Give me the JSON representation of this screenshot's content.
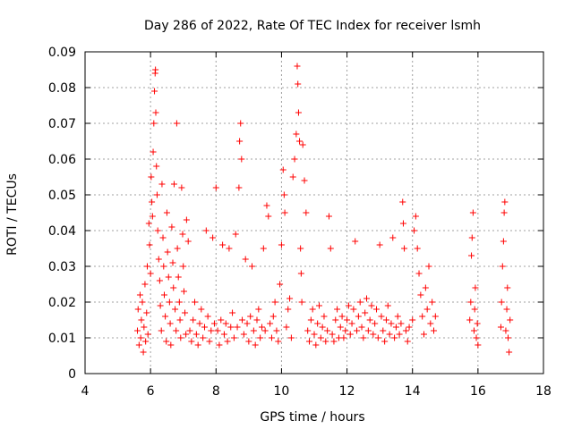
{
  "chart_data": {
    "type": "scatter",
    "title": "Day 286 of 2022, Rate Of TEC Index for receiver lsmh",
    "xlabel": "GPS time / hours",
    "ylabel": "ROTI / TECUs",
    "xlim": [
      4,
      18
    ],
    "ylim": [
      0,
      0.09
    ],
    "xticks": [
      "4",
      "6",
      "8",
      "10",
      "12",
      "14",
      "16",
      "18"
    ],
    "yticks": [
      "0",
      "0.01",
      "0.02",
      "0.03",
      "0.04",
      "0.05",
      "0.06",
      "0.07",
      "0.08",
      "0.09"
    ],
    "grid": true,
    "marker": "+",
    "marker_color": "#ff0000",
    "series": [
      {
        "points": [
          [
            5.6,
            0.012
          ],
          [
            5.62,
            0.018
          ],
          [
            5.65,
            0.008
          ],
          [
            5.68,
            0.022
          ],
          [
            5.7,
            0.01
          ],
          [
            5.72,
            0.015
          ],
          [
            5.75,
            0.02
          ],
          [
            5.78,
            0.006
          ],
          [
            5.8,
            0.013
          ],
          [
            5.83,
            0.025
          ],
          [
            5.85,
            0.009
          ],
          [
            5.88,
            0.017
          ],
          [
            5.9,
            0.03
          ],
          [
            5.92,
            0.011
          ],
          [
            5.95,
            0.042
          ],
          [
            5.97,
            0.036
          ],
          [
            6.0,
            0.028
          ],
          [
            6.02,
            0.055
          ],
          [
            6.04,
            0.048
          ],
          [
            6.06,
            0.044
          ],
          [
            6.08,
            0.062
          ],
          [
            6.1,
            0.07
          ],
          [
            6.12,
            0.079
          ],
          [
            6.14,
            0.084
          ],
          [
            6.15,
            0.085
          ],
          [
            6.16,
            0.073
          ],
          [
            6.18,
            0.058
          ],
          [
            6.2,
            0.05
          ],
          [
            6.22,
            0.04
          ],
          [
            6.25,
            0.032
          ],
          [
            6.28,
            0.026
          ],
          [
            6.3,
            0.019
          ],
          [
            6.33,
            0.012
          ],
          [
            6.35,
            0.053
          ],
          [
            6.38,
            0.038
          ],
          [
            6.4,
            0.03
          ],
          [
            6.42,
            0.022
          ],
          [
            6.45,
            0.016
          ],
          [
            6.48,
            0.009
          ],
          [
            6.5,
            0.045
          ],
          [
            6.52,
            0.034
          ],
          [
            6.55,
            0.027
          ],
          [
            6.58,
            0.02
          ],
          [
            6.6,
            0.014
          ],
          [
            6.62,
            0.008
          ],
          [
            6.65,
            0.041
          ],
          [
            6.68,
            0.031
          ],
          [
            6.7,
            0.024
          ],
          [
            6.72,
            0.053
          ],
          [
            6.75,
            0.018
          ],
          [
            6.78,
            0.012
          ],
          [
            6.8,
            0.07
          ],
          [
            6.82,
            0.035
          ],
          [
            6.85,
            0.027
          ],
          [
            6.88,
            0.02
          ],
          [
            6.9,
            0.015
          ],
          [
            6.92,
            0.01
          ],
          [
            6.95,
            0.052
          ],
          [
            6.98,
            0.039
          ],
          [
            7.0,
            0.03
          ],
          [
            7.02,
            0.023
          ],
          [
            7.05,
            0.017
          ],
          [
            7.08,
            0.011
          ],
          [
            7.1,
            0.043
          ],
          [
            7.15,
            0.037
          ],
          [
            7.2,
            0.012
          ],
          [
            7.25,
            0.009
          ],
          [
            7.3,
            0.015
          ],
          [
            7.35,
            0.02
          ],
          [
            7.4,
            0.011
          ],
          [
            7.45,
            0.008
          ],
          [
            7.5,
            0.014
          ],
          [
            7.55,
            0.018
          ],
          [
            7.6,
            0.01
          ],
          [
            7.65,
            0.013
          ],
          [
            7.7,
            0.04
          ],
          [
            7.75,
            0.016
          ],
          [
            7.8,
            0.009
          ],
          [
            7.85,
            0.012
          ],
          [
            7.9,
            0.038
          ],
          [
            7.95,
            0.014
          ],
          [
            8.0,
            0.052
          ],
          [
            8.05,
            0.012
          ],
          [
            8.1,
            0.008
          ],
          [
            8.15,
            0.015
          ],
          [
            8.2,
            0.036
          ],
          [
            8.25,
            0.011
          ],
          [
            8.3,
            0.014
          ],
          [
            8.35,
            0.009
          ],
          [
            8.4,
            0.035
          ],
          [
            8.45,
            0.013
          ],
          [
            8.5,
            0.017
          ],
          [
            8.55,
            0.01
          ],
          [
            8.6,
            0.039
          ],
          [
            8.65,
            0.013
          ],
          [
            8.7,
            0.052
          ],
          [
            8.72,
            0.065
          ],
          [
            8.75,
            0.07
          ],
          [
            8.78,
            0.06
          ],
          [
            8.8,
            0.015
          ],
          [
            8.85,
            0.011
          ],
          [
            8.9,
            0.032
          ],
          [
            8.95,
            0.014
          ],
          [
            9.0,
            0.009
          ],
          [
            9.05,
            0.016
          ],
          [
            9.1,
            0.03
          ],
          [
            9.15,
            0.012
          ],
          [
            9.2,
            0.008
          ],
          [
            9.25,
            0.015
          ],
          [
            9.3,
            0.018
          ],
          [
            9.35,
            0.01
          ],
          [
            9.4,
            0.013
          ],
          [
            9.45,
            0.035
          ],
          [
            9.5,
            0.012
          ],
          [
            9.55,
            0.047
          ],
          [
            9.6,
            0.044
          ],
          [
            9.65,
            0.014
          ],
          [
            9.7,
            0.01
          ],
          [
            9.75,
            0.016
          ],
          [
            9.8,
            0.02
          ],
          [
            9.85,
            0.012
          ],
          [
            9.9,
            0.009
          ],
          [
            9.95,
            0.025
          ],
          [
            10.0,
            0.036
          ],
          [
            10.05,
            0.057
          ],
          [
            10.08,
            0.05
          ],
          [
            10.1,
            0.045
          ],
          [
            10.15,
            0.013
          ],
          [
            10.2,
            0.018
          ],
          [
            10.25,
            0.021
          ],
          [
            10.3,
            0.01
          ],
          [
            10.35,
            0.055
          ],
          [
            10.4,
            0.06
          ],
          [
            10.45,
            0.067
          ],
          [
            10.48,
            0.086
          ],
          [
            10.5,
            0.081
          ],
          [
            10.52,
            0.073
          ],
          [
            10.55,
            0.065
          ],
          [
            10.58,
            0.035
          ],
          [
            10.6,
            0.028
          ],
          [
            10.62,
            0.02
          ],
          [
            10.65,
            0.064
          ],
          [
            10.7,
            0.054
          ],
          [
            10.75,
            0.045
          ],
          [
            10.8,
            0.012
          ],
          [
            10.85,
            0.009
          ],
          [
            10.9,
            0.015
          ],
          [
            10.95,
            0.018
          ],
          [
            11.0,
            0.011
          ],
          [
            11.05,
            0.008
          ],
          [
            11.1,
            0.014
          ],
          [
            11.15,
            0.019
          ],
          [
            11.2,
            0.01
          ],
          [
            11.25,
            0.013
          ],
          [
            11.3,
            0.016
          ],
          [
            11.35,
            0.009
          ],
          [
            11.4,
            0.012
          ],
          [
            11.45,
            0.044
          ],
          [
            11.5,
            0.035
          ],
          [
            11.55,
            0.011
          ],
          [
            11.6,
            0.009
          ],
          [
            11.65,
            0.015
          ],
          [
            11.7,
            0.018
          ],
          [
            11.75,
            0.01
          ],
          [
            11.8,
            0.013
          ],
          [
            11.85,
            0.016
          ],
          [
            11.9,
            0.01
          ],
          [
            11.95,
            0.012
          ],
          [
            12.0,
            0.015
          ],
          [
            12.05,
            0.019
          ],
          [
            12.1,
            0.011
          ],
          [
            12.15,
            0.014
          ],
          [
            12.2,
            0.018
          ],
          [
            12.25,
            0.037
          ],
          [
            12.3,
            0.012
          ],
          [
            12.35,
            0.016
          ],
          [
            12.4,
            0.02
          ],
          [
            12.45,
            0.013
          ],
          [
            12.5,
            0.01
          ],
          [
            12.55,
            0.017
          ],
          [
            12.6,
            0.021
          ],
          [
            12.65,
            0.012
          ],
          [
            12.7,
            0.015
          ],
          [
            12.75,
            0.019
          ],
          [
            12.8,
            0.011
          ],
          [
            12.85,
            0.014
          ],
          [
            12.9,
            0.018
          ],
          [
            12.95,
            0.01
          ],
          [
            13.0,
            0.036
          ],
          [
            13.05,
            0.016
          ],
          [
            13.1,
            0.012
          ],
          [
            13.15,
            0.009
          ],
          [
            13.2,
            0.015
          ],
          [
            13.25,
            0.019
          ],
          [
            13.3,
            0.011
          ],
          [
            13.35,
            0.014
          ],
          [
            13.4,
            0.038
          ],
          [
            13.45,
            0.01
          ],
          [
            13.5,
            0.013
          ],
          [
            13.55,
            0.016
          ],
          [
            13.6,
            0.011
          ],
          [
            13.65,
            0.014
          ],
          [
            13.7,
            0.048
          ],
          [
            13.72,
            0.042
          ],
          [
            13.75,
            0.035
          ],
          [
            13.8,
            0.012
          ],
          [
            13.85,
            0.009
          ],
          [
            13.9,
            0.013
          ],
          [
            14.0,
            0.015
          ],
          [
            14.05,
            0.04
          ],
          [
            14.1,
            0.044
          ],
          [
            14.15,
            0.035
          ],
          [
            14.2,
            0.028
          ],
          [
            14.25,
            0.022
          ],
          [
            14.3,
            0.016
          ],
          [
            14.35,
            0.011
          ],
          [
            14.4,
            0.024
          ],
          [
            14.45,
            0.018
          ],
          [
            14.5,
            0.03
          ],
          [
            14.55,
            0.014
          ],
          [
            14.6,
            0.02
          ],
          [
            14.65,
            0.012
          ],
          [
            14.7,
            0.016
          ],
          [
            15.75,
            0.015
          ],
          [
            15.78,
            0.02
          ],
          [
            15.8,
            0.033
          ],
          [
            15.82,
            0.038
          ],
          [
            15.85,
            0.045
          ],
          [
            15.88,
            0.012
          ],
          [
            15.9,
            0.018
          ],
          [
            15.92,
            0.024
          ],
          [
            15.95,
            0.01
          ],
          [
            15.98,
            0.014
          ],
          [
            16.0,
            0.008
          ],
          [
            16.7,
            0.013
          ],
          [
            16.72,
            0.02
          ],
          [
            16.75,
            0.03
          ],
          [
            16.78,
            0.037
          ],
          [
            16.8,
            0.045
          ],
          [
            16.82,
            0.048
          ],
          [
            16.85,
            0.012
          ],
          [
            16.88,
            0.018
          ],
          [
            16.9,
            0.024
          ],
          [
            16.92,
            0.01
          ],
          [
            16.95,
            0.006
          ],
          [
            16.98,
            0.015
          ]
        ]
      }
    ]
  }
}
